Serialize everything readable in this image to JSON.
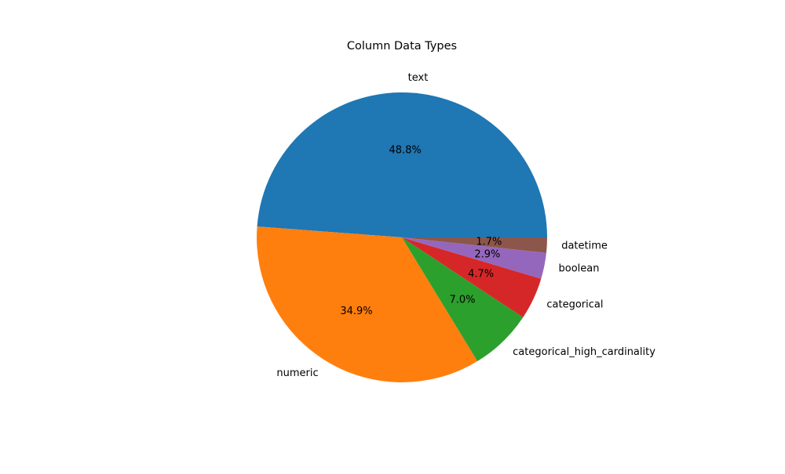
{
  "chart_data": {
    "type": "pie",
    "title": "Column Data Types",
    "slices": [
      {
        "label": "text",
        "percent": 48.8,
        "percent_label": "48.8%",
        "color": "#1f77b4"
      },
      {
        "label": "numeric",
        "percent": 34.9,
        "percent_label": "34.9%",
        "color": "#ff7f0e"
      },
      {
        "label": "categorical_high_cardinality",
        "percent": 7.0,
        "percent_label": "7.0%",
        "color": "#2ca02c"
      },
      {
        "label": "categorical",
        "percent": 4.7,
        "percent_label": "4.7%",
        "color": "#d62728"
      },
      {
        "label": "boolean",
        "percent": 2.9,
        "percent_label": "2.9%",
        "color": "#9467bd"
      },
      {
        "label": "datetime",
        "percent": 1.7,
        "percent_label": "1.7%",
        "color": "#8c564b"
      }
    ],
    "start_angle_deg": 0,
    "direction": "counterclockwise",
    "legend": "none"
  }
}
